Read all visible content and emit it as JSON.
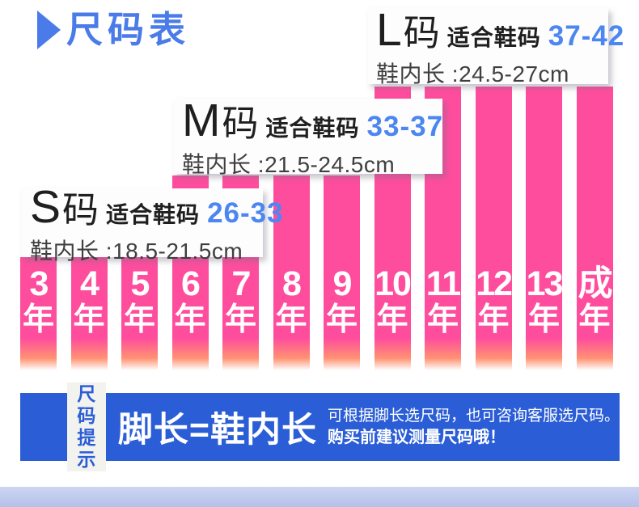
{
  "header": {
    "title": "尺码表"
  },
  "colors": {
    "title_blue": "#4a7be8",
    "number_blue": "#4c86f0",
    "bar_pink": "#ff4d9e",
    "fade_orange": "#ff9272",
    "banner_blue": "#2b5ed6"
  },
  "size_boxes": [
    {
      "size_letter": "L",
      "size_suffix": "码",
      "fit_label": "适合鞋码",
      "shoe_range": "37-42",
      "inner_label": "鞋内长 :",
      "inner_value": "24.5-27cm"
    },
    {
      "size_letter": "M",
      "size_suffix": "码",
      "fit_label": "适合鞋码",
      "shoe_range": "33-37",
      "inner_label": "鞋内长 :",
      "inner_value": "21.5-24.5cm"
    },
    {
      "size_letter": "S",
      "size_suffix": "码",
      "fit_label": "适合鞋码",
      "shoe_range": "26-33",
      "inner_label": "鞋内长 :",
      "inner_value": "18.5-21.5cm"
    }
  ],
  "chart_data": {
    "type": "bar",
    "title": "尺码表",
    "categories": [
      "3年",
      "4年",
      "5年",
      "6年",
      "7年",
      "8年",
      "9年",
      "10年",
      "11年",
      "12年",
      "13年",
      "成年"
    ],
    "relative_heights": [
      1,
      1,
      1,
      2,
      2,
      2,
      2,
      3,
      3,
      3,
      3,
      3
    ],
    "series": [
      {
        "name": "S码 26-33 (鞋内长18.5-21.5cm)",
        "covers": [
          "3年",
          "4年",
          "5年",
          "6年",
          "7年"
        ]
      },
      {
        "name": "M码 33-37 (鞋内长21.5-24.5cm)",
        "covers": [
          "8年",
          "9年"
        ]
      },
      {
        "name": "L码 37-42 (鞋内长24.5-27cm)",
        "covers": [
          "10年",
          "11年",
          "12年",
          "13年",
          "成年"
        ]
      }
    ],
    "bars": [
      {
        "label_top": "3",
        "label_bottom": "年",
        "tier": "short"
      },
      {
        "label_top": "4",
        "label_bottom": "年",
        "tier": "short"
      },
      {
        "label_top": "5",
        "label_bottom": "年",
        "tier": "short"
      },
      {
        "label_top": "6",
        "label_bottom": "年",
        "tier": "mid"
      },
      {
        "label_top": "7",
        "label_bottom": "年",
        "tier": "mid"
      },
      {
        "label_top": "8",
        "label_bottom": "年",
        "tier": "mid"
      },
      {
        "label_top": "9",
        "label_bottom": "年",
        "tier": "mid"
      },
      {
        "label_top": "10",
        "label_bottom": "年",
        "tier": "tall"
      },
      {
        "label_top": "11",
        "label_bottom": "年",
        "tier": "tall"
      },
      {
        "label_top": "12",
        "label_bottom": "年",
        "tier": "tall"
      },
      {
        "label_top": "13",
        "label_bottom": "年",
        "tier": "tall"
      },
      {
        "label_top": "成",
        "label_bottom": "年",
        "tier": "tall"
      }
    ]
  },
  "tip_banner": {
    "badge_line1": "尺码",
    "badge_line2": "提示",
    "headline": "脚长=鞋内长",
    "note_line1": "可根据脚长选尺码，也可咨询客服选尺码。",
    "note_line2": "购买前建议测量尺码哦！"
  }
}
